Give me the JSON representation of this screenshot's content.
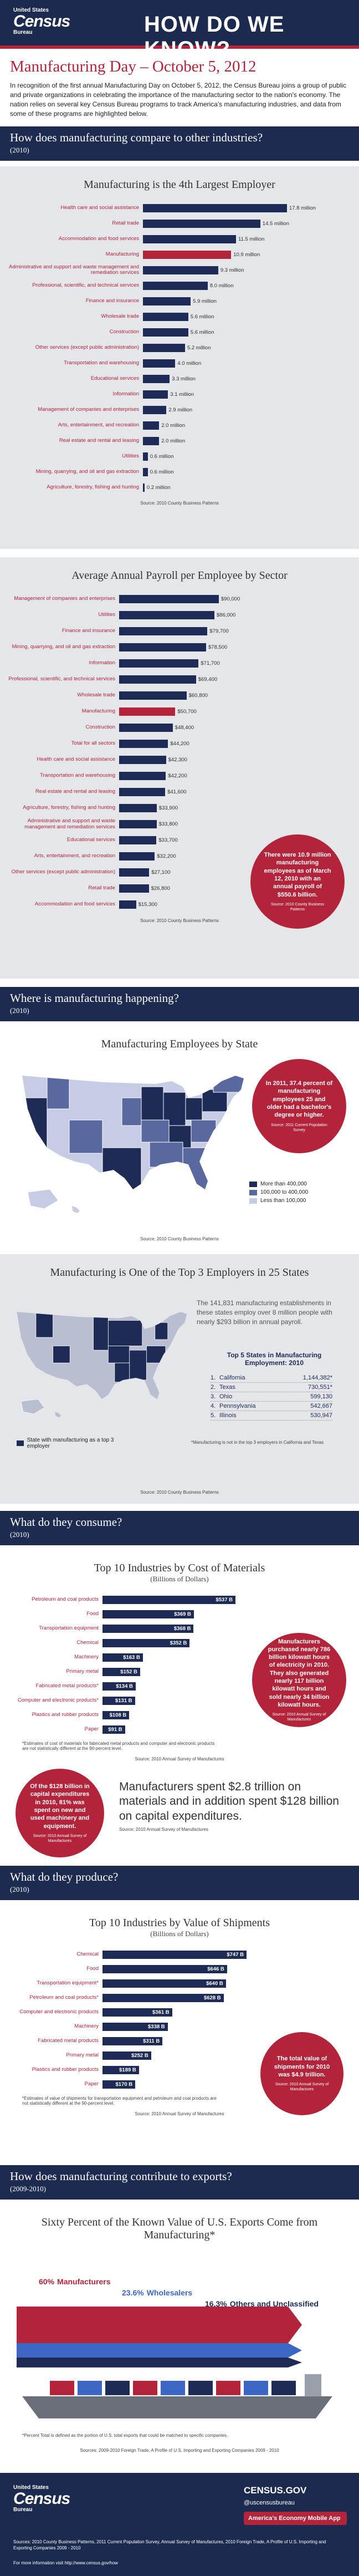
{
  "header": {
    "agency_top": "United States",
    "agency": "Census",
    "agency_bottom": "Bureau",
    "title": "HOW DO WE KNOW?"
  },
  "page_title": "Manufacturing Day – October 5, 2012",
  "intro": "In recognition of the first annual Manufacturing Day on October 5, 2012, the Census Bureau joins a group of public and private organizations in celebrating the importance of the manufacturing sector to the nation's economy.  The nation relies on several key Census Bureau programs to track America's manufacturing industries, and data from some of these programs are highlighted below.",
  "sections": [
    {
      "title": "How does manufacturing compare to other industries?",
      "period": "(2010)"
    },
    {
      "title": "Where is manufacturing happening?",
      "period": "(2010)"
    },
    {
      "title": "What do they consume?",
      "period": "(2010)"
    },
    {
      "title": "What do they produce?",
      "period": "(2010)"
    },
    {
      "title": "How does manufacturing contribute to exports?",
      "period": "(2009-2010)"
    }
  ],
  "chart_data": [
    {
      "type": "bar",
      "orientation": "horizontal",
      "title": "Manufacturing is the 4th Largest Employer",
      "categories": [
        "Health care and social assistance",
        "Retail trade",
        "Accommodation and food services",
        "Manufacturing",
        "Administrative and support and waste management and remediation services",
        "Professional, scientific, and technical services",
        "Finance and insurance",
        "Wholesale trade",
        "Construction",
        "Other services (except public administration)",
        "Transportation and warehousing",
        "Educational services",
        "Information",
        "Management of companies and enterprises",
        "Arts, entertainment, and recreation",
        "Real estate and rental and leasing",
        "Utilities",
        "Mining, quarrying, and oil and gas extraction",
        "Agriculture, forestry, fishing and hunting"
      ],
      "values": [
        17.8,
        14.5,
        11.5,
        10.9,
        9.3,
        8.0,
        5.9,
        5.6,
        5.6,
        5.2,
        4.0,
        3.3,
        3.1,
        2.9,
        2.0,
        2.0,
        0.6,
        0.6,
        0.2
      ],
      "value_labels": [
        "17.8 million",
        "14.5 million",
        "11.5 million",
        "10.9 million",
        "9.3 million",
        "8.0 million",
        "5.9 million",
        "5.6 million",
        "5.6 million",
        "5.2 million",
        "4.0 million",
        "3.3 million",
        "3.1 million",
        "2.9 million",
        "2.0 million",
        "2.0 million",
        "0.6 million",
        "0.6 million",
        "0.2 million"
      ],
      "color": "#1f2b57",
      "highlight": "Manufacturing",
      "highlight_color": "#b3243b",
      "source": "Source: 2010 County Business Patterns"
    },
    {
      "type": "bar",
      "orientation": "horizontal",
      "title": "Average Annual Payroll per Employee by Sector",
      "categories": [
        "Management of companies and enterprises",
        "Utilities",
        "Finance and insurance",
        "Mining, quarrying, and oil and gas extraction",
        "Information",
        "Professional, scientific, and technical services",
        "Wholesale trade",
        "Manufacturing",
        "Construction",
        "Total for all sectors",
        "Health care and social assistance",
        "Transportation and warehousing",
        "Real estate and rental and leasing",
        "Agriculture, forestry, fishing and hunting",
        "Administrative and support and waste management and remediation services",
        "Educational services",
        "Arts, entertainment, and recreation",
        "Other services (except public administration)",
        "Retail trade",
        "Accommodation and food services"
      ],
      "values": [
        90000,
        86000,
        79700,
        78500,
        71700,
        69400,
        60800,
        50700,
        48400,
        44200,
        42300,
        42200,
        41600,
        33900,
        33800,
        33700,
        32200,
        27100,
        26800,
        15300
      ],
      "value_labels": [
        "$90,000",
        "$86,000",
        "$79,700",
        "$78,500",
        "$71,700",
        "$69,400",
        "$60,800",
        "$50,700",
        "$48,400",
        "$44,200",
        "$42,300",
        "$42,200",
        "$41,600",
        "$33,900",
        "$33,800",
        "$33,700",
        "$32,200",
        "$27,100",
        "$26,800",
        "$15,300"
      ],
      "color": "#1f2b57",
      "highlight": "Manufacturing",
      "highlight_color": "#b3243b",
      "source": "Source: 2010 County Business Patterns",
      "annotations": [
        {
          "text": "There were 10.9 million manufacturing employees as of March 12, 2010 with an annual payroll of $550.6 billion.",
          "source": "Source: 2010 County Business Patterns"
        }
      ]
    },
    {
      "type": "map",
      "title": "Manufacturing Employees by State",
      "legend": [
        {
          "name": "More than 400,000",
          "color": "#1f2b57"
        },
        {
          "name": "100,000 to 400,000",
          "color": "#5a68a0"
        },
        {
          "name": "Less than 100,000",
          "color": "#c6cce3"
        }
      ],
      "annotations": [
        {
          "text": "In 2011, 37.4 percent of manufacturing employees 25 and older had a bachelor's degree or higher.",
          "source": "Source: 2011 Current Population Survey"
        }
      ],
      "source": "Source: 2010 County Business Patterns"
    },
    {
      "type": "map",
      "title": "Manufacturing is One of the Top 3 Employers in 25 States",
      "legend": [
        {
          "name": "State with manufacturing as a top 3 employer",
          "color": "#1f2b57"
        }
      ],
      "text": "The 141,831 manufacturing establishments in these states employ over 8 million people with nearly $293 billion in annual payroll.",
      "table_title": "Top 5 States in Manufacturing Employment: 2010",
      "ranks": [
        "1.",
        "2.",
        "3.",
        "4.",
        "5."
      ],
      "categories": [
        "California",
        "Texas",
        "Ohio",
        "Pennsylvania",
        "Illinois"
      ],
      "values": [
        1144382,
        730551,
        599130,
        542667,
        530947
      ],
      "value_labels": [
        "1,144,382*",
        "730,551*",
        "599,130",
        "542,667",
        "530,947"
      ],
      "note": "*Manufacturing is not in the top 3 employers in California and Texas",
      "source": "Source: 2010 County Business Patterns"
    },
    {
      "type": "bar",
      "orientation": "horizontal",
      "title": "Top 10 Industries by Cost of Materials",
      "subtitle": "(Billions of Dollars)",
      "categories": [
        "Petroleum and coal products",
        "Food",
        "Transportation equipment",
        "Chemical",
        "Machinery",
        "Primary metal",
        "Fabricated metal products*",
        "Computer and electronic products*",
        "Plastics and rubber products",
        "Paper"
      ],
      "values": [
        537,
        369,
        368,
        352,
        163,
        152,
        134,
        131,
        108,
        91
      ],
      "value_labels": [
        "$537 B",
        "$369 B",
        "$368 B",
        "$352 B",
        "$163 B",
        "$152 B",
        "$134 B",
        "$131 B",
        "$108 B",
        "$91 B"
      ],
      "color": "#1f2b57",
      "label_inside": true,
      "note": "*Estimates of cost of materials for fabricated metal products and computer and electronic products are not statistically different at the 90-percent level.",
      "source": "Source: 2010 Annual Survey of Manufactures",
      "annotations": [
        {
          "text": "Manufacturers purchased nearly 786 billion kilowatt hours of electricity in 2010. They also generated nearly 117 billion kilowatt hours and sold nearly 34 billion kilowatt hours.",
          "source": "Source: 2010 Annual Survey of Manufactures"
        },
        {
          "text": "Of the $128 billion in capital expenditures in 2010, 81% was spent on new and used machinery and equipment.",
          "source": "Source: 2010 Annual Survey of Manufactures"
        }
      ],
      "summary": {
        "text": "Manufacturers spent $2.8 trillion on materials and in addition spent $128 billion on capital expenditures.",
        "source": "Source: 2010 Annual Survey of Manufactures"
      }
    },
    {
      "type": "bar",
      "orientation": "horizontal",
      "title": "Top 10 Industries by Value of Shipments",
      "subtitle": "(Billions of Dollars)",
      "categories": [
        "Chemical",
        "Food",
        "Transportation equipment*",
        "Petroleum and coal products*",
        "Computer and electronic products",
        "Machinery",
        "Fabricated metal products",
        "Primary metal",
        "Plastics and rubber products",
        "Paper"
      ],
      "values": [
        747,
        646,
        640,
        628,
        361,
        338,
        311,
        252,
        189,
        170
      ],
      "value_labels": [
        "$747 B",
        "$646 B",
        "$640 B",
        "$628 B",
        "$361 B",
        "$338 B",
        "$311 B",
        "$252 B",
        "$189 B",
        "$170 B"
      ],
      "color": "#1f2b57",
      "label_inside": true,
      "note": "*Estimates of value of shipments for transportation equipment and petroleum and coal products are not statistically different at the 90-percent level.",
      "source": "Source: 2010 Annual Survey of Manufactures",
      "annotations": [
        {
          "text": "The total value of shipments for 2010 was $4.9 trillion.",
          "source": "Source: 2010 Annual Survey of Manufactures"
        }
      ]
    },
    {
      "type": "arrow",
      "title": "Sixty Percent of the Known Value of U.S. Exports Come from Manufacturing*",
      "categories": [
        "Manufacturers",
        "Wholesalers",
        "Others and Unclassified"
      ],
      "values": [
        60,
        23.6,
        16.3
      ],
      "value_labels": [
        "60%",
        "23.6%",
        "16.3%"
      ],
      "colors": [
        "#b3243b",
        "#3b66c4",
        "#1f2b57"
      ],
      "note": "*Percent Total is defined as the portion of U.S. total exports that could be matched to specific companies.",
      "source": "Sources: 2009-2010 Foreign Trade, A Profile of U.S. Importing and Exporting Companies 2009 - 2010"
    }
  ],
  "footer": {
    "agency_top": "United States",
    "agency": "Census",
    "agency_bottom": "Bureau",
    "website": "CENSUS.GOV",
    "social": "@uscensusbureau",
    "app": "America's Economy Mobile App",
    "sources": "Sources: 2010 County Business Patterns, 2011 Current Population Survey, Annual Survey of Manufactures, 2010 Foreign Trade, A Profile of U.S. Importing and Exporting Companies 2009 - 2010",
    "more": "For more information visit http://www.census.gov/how"
  }
}
